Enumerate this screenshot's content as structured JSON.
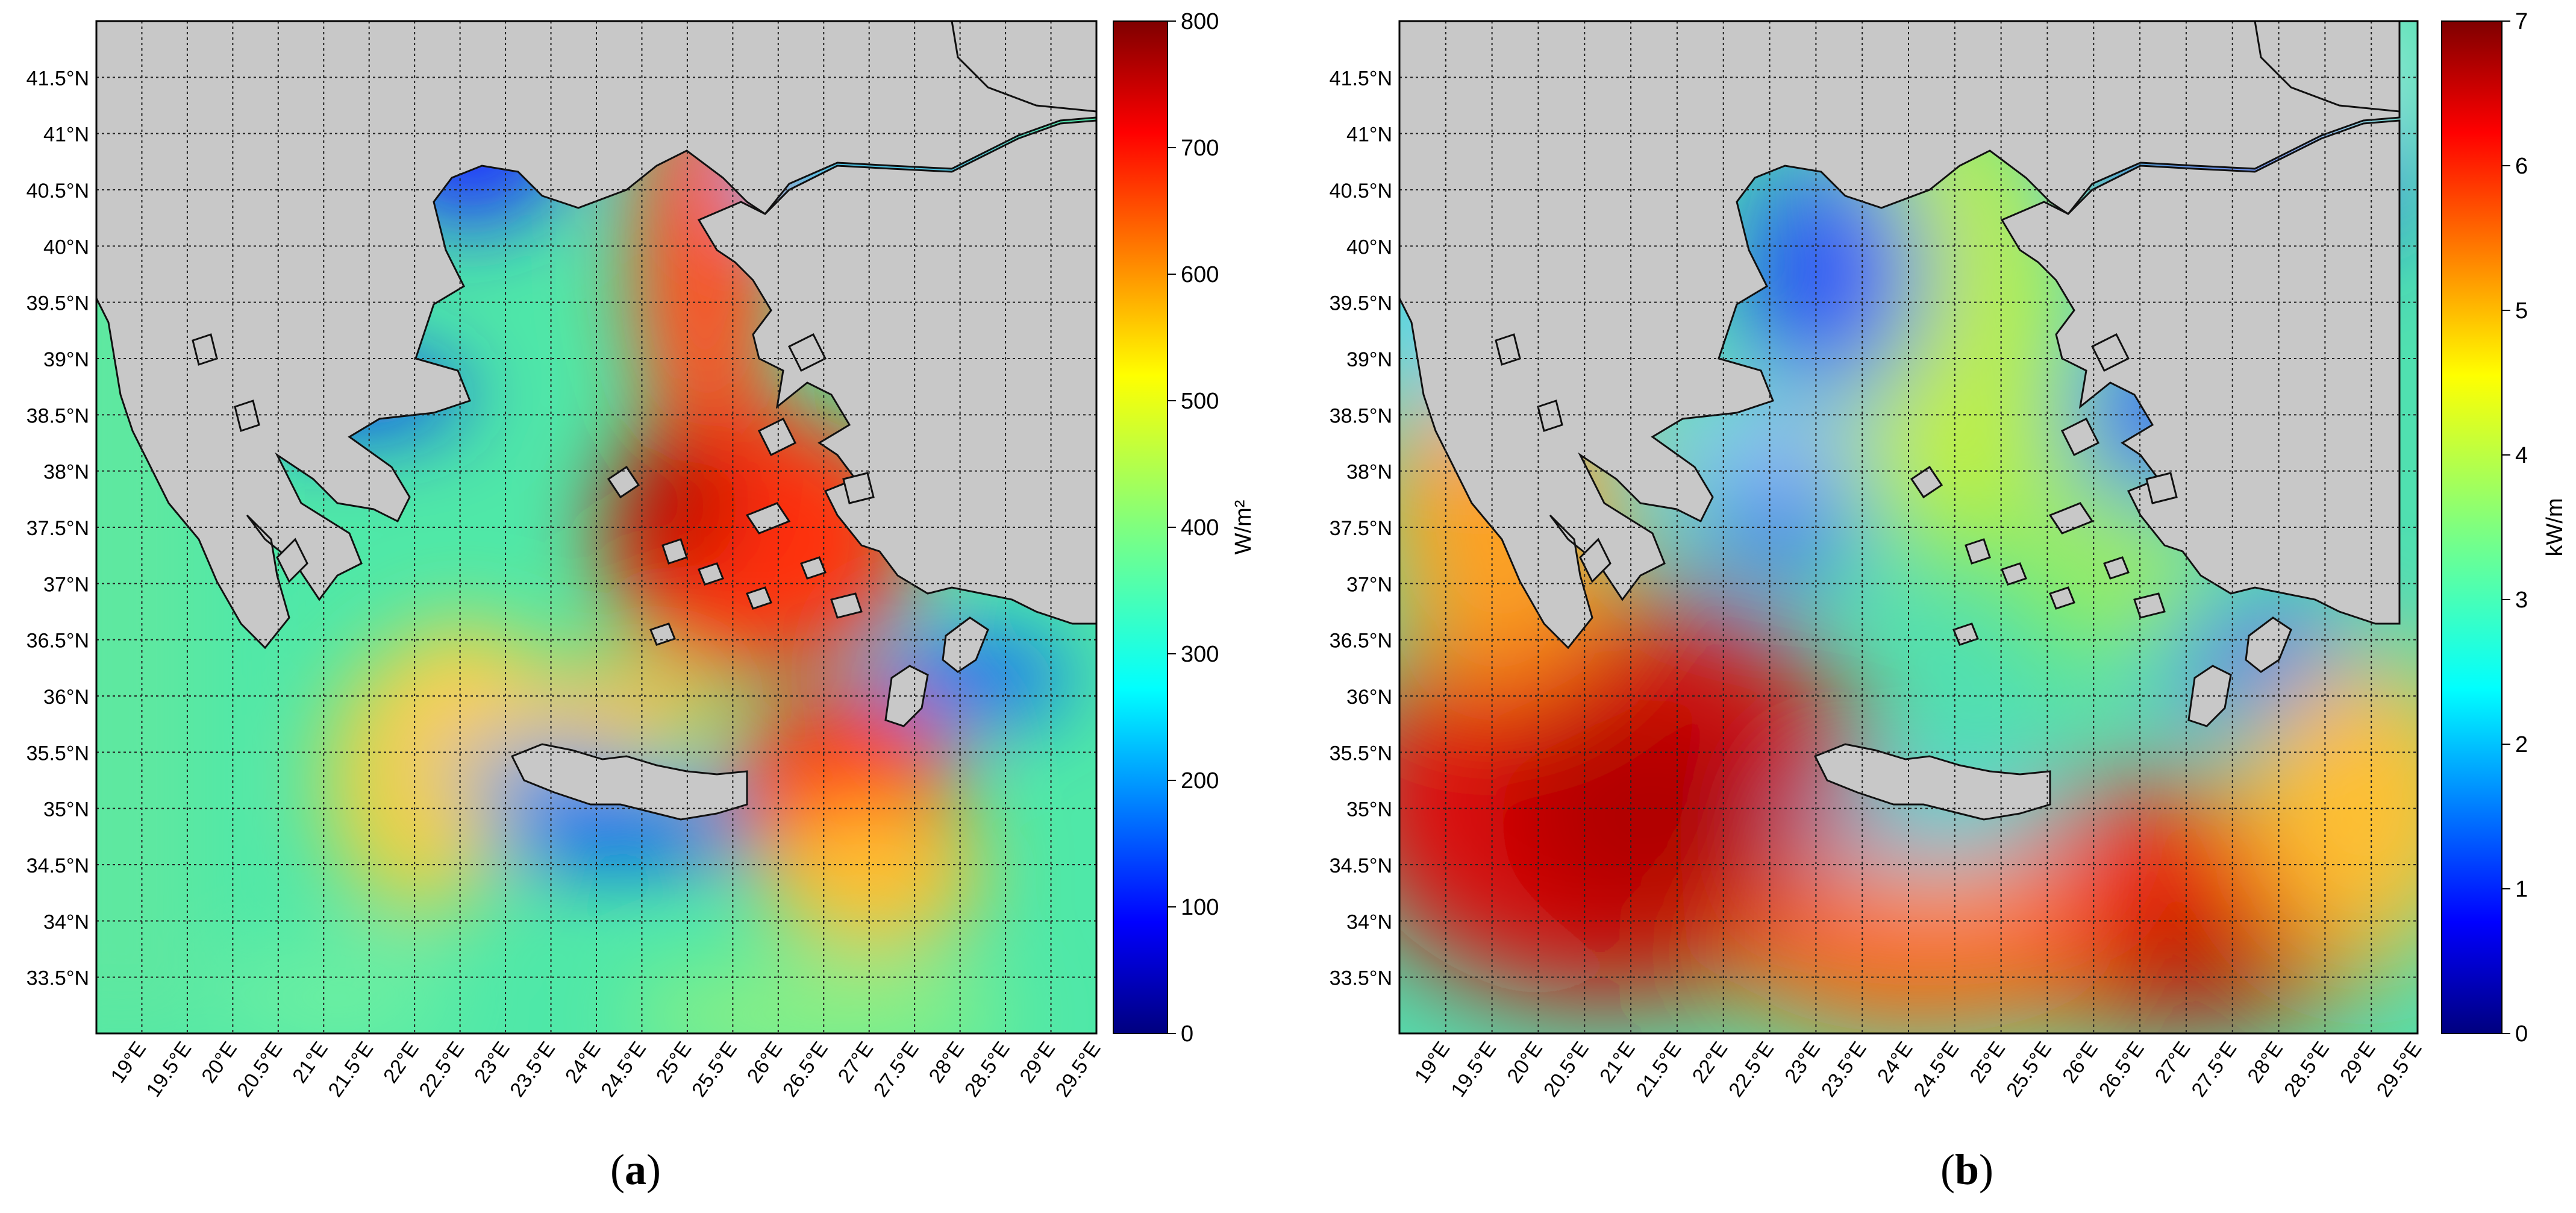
{
  "panels": [
    {
      "id": "a",
      "letter": "a",
      "colorbar": {
        "label": "W/m²",
        "ticks": [
          "0",
          "100",
          "200",
          "300",
          "400",
          "500",
          "600",
          "700",
          "800"
        ]
      },
      "lat_labels": [
        "41.5°N",
        "41°N",
        "40.5°N",
        "40°N",
        "39.5°N",
        "39°N",
        "38.5°N",
        "38°N",
        "37.5°N",
        "37°N",
        "36.5°N",
        "36°N",
        "35.5°N",
        "35°N",
        "34.5°N",
        "34°N",
        "33.5°N"
      ],
      "lon_labels": [
        "19°E",
        "19.5°E",
        "20°E",
        "20.5°E",
        "21°E",
        "21.5°E",
        "22°E",
        "22.5°E",
        "23°E",
        "23.5°E",
        "24°E",
        "24.5°E",
        "25°E",
        "25.5°E",
        "26°E",
        "26.5°E",
        "27°E",
        "27.5°E",
        "28°E",
        "28.5°E",
        "29°E",
        "29.5°E"
      ]
    },
    {
      "id": "b",
      "letter": "b",
      "colorbar": {
        "label": "kW/m",
        "ticks": [
          "0",
          "1",
          "2",
          "3",
          "4",
          "5",
          "6",
          "7"
        ]
      },
      "lat_labels": [
        "41.5°N",
        "41°N",
        "40.5°N",
        "40°N",
        "39.5°N",
        "39°N",
        "38.5°N",
        "38°N",
        "37.5°N",
        "37°N",
        "36.5°N",
        "36°N",
        "35.5°N",
        "35°N",
        "34.5°N",
        "34°N",
        "33.5°N"
      ],
      "lon_labels": [
        "19°E",
        "19.5°E",
        "20°E",
        "20.5°E",
        "21°E",
        "21.5°E",
        "22°E",
        "22.5°E",
        "23°E",
        "23.5°E",
        "24°E",
        "24.5°E",
        "25°E",
        "25.5°E",
        "26°E",
        "26.5°E",
        "27°E",
        "27.5°E",
        "28°E",
        "28.5°E",
        "29°E",
        "29.5°E"
      ]
    }
  ],
  "colors": {
    "land": "#c8c8c8",
    "coast": "#111111",
    "grid": "#222222",
    "colormap": [
      "#00007f",
      "#0000ff",
      "#007fff",
      "#00ffff",
      "#7fff7f",
      "#ffff00",
      "#ff7f00",
      "#ff0000",
      "#7f0000"
    ]
  }
}
